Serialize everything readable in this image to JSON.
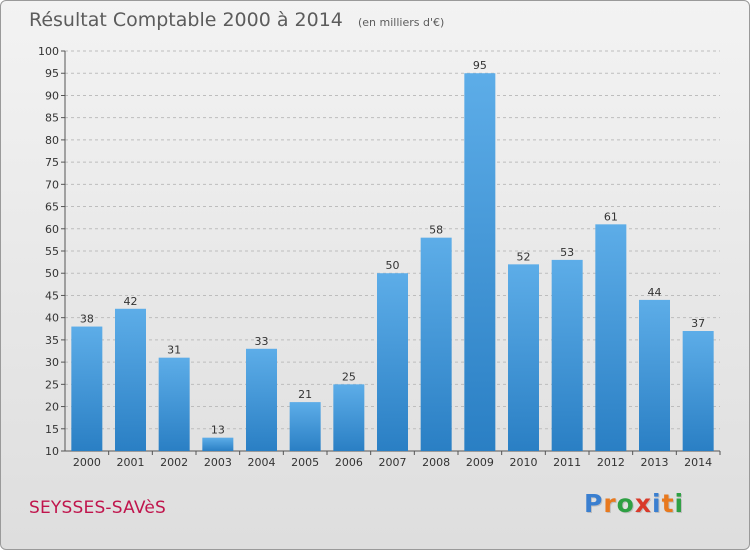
{
  "header": {
    "title": "Résultat Comptable 2000 à 2014",
    "subtitle": "(en milliers d'€)"
  },
  "footer": {
    "commune": "SEYSSES-SAVèS",
    "logo_text": "Proxiti",
    "logo_colors": [
      "#3a7fd0",
      "#e8791e",
      "#2ea043",
      "#d93a2a",
      "#3a7fd0",
      "#e8791e",
      "#2ea043"
    ]
  },
  "colors": {
    "bar_light": "#5dade8",
    "bar_dark": "#2a7fc4",
    "grid": "#bdbdbd",
    "commune_text": "#c0144c"
  },
  "chart_data": {
    "type": "bar",
    "title": "Résultat Comptable 2000 à 2014",
    "subtitle": "(en milliers d'€)",
    "categories": [
      "2000",
      "2001",
      "2002",
      "2003",
      "2004",
      "2005",
      "2006",
      "2007",
      "2008",
      "2009",
      "2010",
      "2011",
      "2012",
      "2013",
      "2014"
    ],
    "values": [
      38,
      42,
      31,
      13,
      33,
      21,
      25,
      50,
      58,
      95,
      52,
      53,
      61,
      44,
      37
    ],
    "ylim": [
      10,
      100
    ],
    "yticks": [
      10,
      15,
      20,
      25,
      30,
      35,
      40,
      45,
      50,
      55,
      60,
      65,
      70,
      75,
      80,
      85,
      90,
      95,
      100
    ],
    "grid": true
  }
}
